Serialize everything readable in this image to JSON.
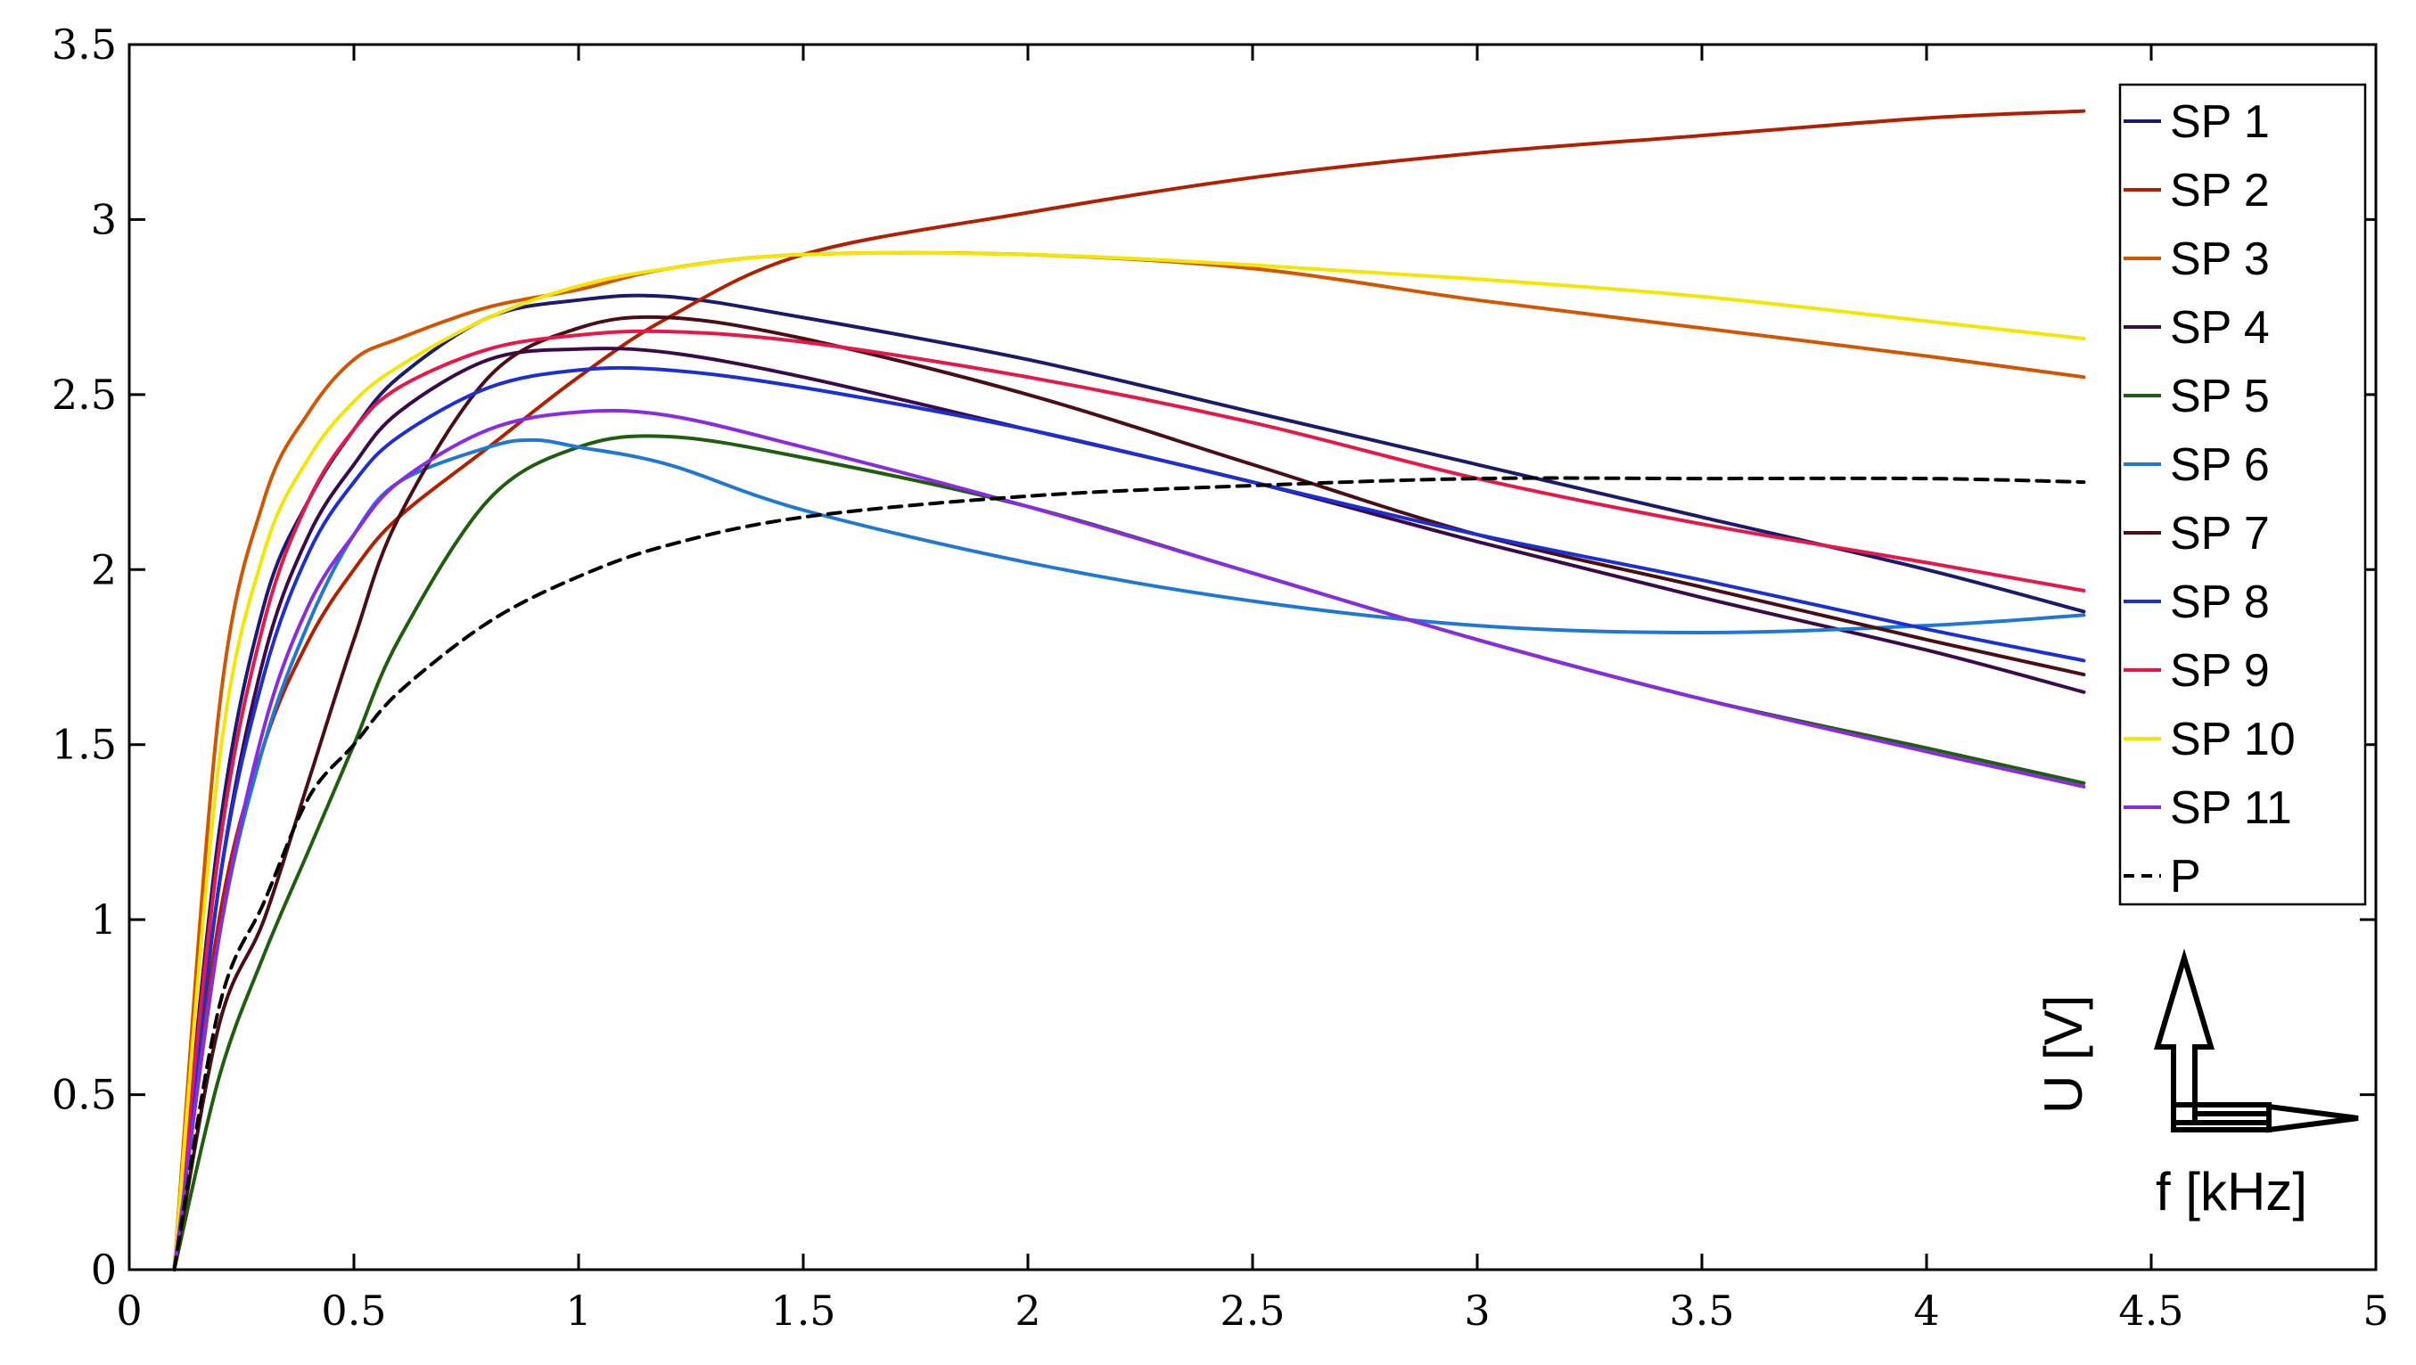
{
  "chart_data": {
    "type": "line",
    "xlim": [
      0,
      5
    ],
    "ylim": [
      0,
      3.5
    ],
    "xticks": [
      "0",
      "0.5",
      "1",
      "1.5",
      "2",
      "2.5",
      "3",
      "3.5",
      "4",
      "4.5",
      "5"
    ],
    "yticks": [
      "0",
      "0.5",
      "1",
      "1.5",
      "2",
      "2.5",
      "3",
      "3.5"
    ],
    "grid": false,
    "legend_position": "top-right",
    "axis_key": {
      "y_label": "U [V]",
      "x_label": "f [kHz]"
    },
    "series": [
      {
        "name": "SP 1",
        "color": "#1a1a6e",
        "dash": false,
        "points": [
          [
            0.1,
            0
          ],
          [
            0.2,
            1.25
          ],
          [
            0.3,
            1.9
          ],
          [
            0.4,
            2.2
          ],
          [
            0.5,
            2.4
          ],
          [
            0.6,
            2.55
          ],
          [
            0.8,
            2.72
          ],
          [
            1.0,
            2.77
          ],
          [
            1.2,
            2.78
          ],
          [
            1.5,
            2.72
          ],
          [
            2.0,
            2.6
          ],
          [
            2.5,
            2.45
          ],
          [
            3.0,
            2.3
          ],
          [
            3.5,
            2.15
          ],
          [
            4.0,
            2.0
          ],
          [
            4.35,
            1.88
          ]
        ]
      },
      {
        "name": "SP 2",
        "color": "#b22000",
        "dash": false,
        "points": [
          [
            0.1,
            0
          ],
          [
            0.2,
            1.0
          ],
          [
            0.3,
            1.5
          ],
          [
            0.4,
            1.8
          ],
          [
            0.5,
            2.0
          ],
          [
            0.6,
            2.15
          ],
          [
            0.8,
            2.35
          ],
          [
            1.0,
            2.55
          ],
          [
            1.2,
            2.72
          ],
          [
            1.5,
            2.9
          ],
          [
            2.0,
            3.02
          ],
          [
            2.5,
            3.12
          ],
          [
            3.0,
            3.19
          ],
          [
            3.5,
            3.24
          ],
          [
            4.0,
            3.29
          ],
          [
            4.35,
            3.31
          ]
        ]
      },
      {
        "name": "SP 3",
        "color": "#d45500",
        "dash": false,
        "points": [
          [
            0.1,
            0
          ],
          [
            0.2,
            1.6
          ],
          [
            0.3,
            2.2
          ],
          [
            0.4,
            2.45
          ],
          [
            0.5,
            2.6
          ],
          [
            0.6,
            2.66
          ],
          [
            0.8,
            2.75
          ],
          [
            1.0,
            2.8
          ],
          [
            1.2,
            2.86
          ],
          [
            1.5,
            2.9
          ],
          [
            2.0,
            2.9
          ],
          [
            2.5,
            2.86
          ],
          [
            3.0,
            2.77
          ],
          [
            3.5,
            2.69
          ],
          [
            4.0,
            2.61
          ],
          [
            4.35,
            2.55
          ]
        ]
      },
      {
        "name": "SP 4",
        "color": "#3b0a4a",
        "dash": false,
        "points": [
          [
            0.1,
            0
          ],
          [
            0.2,
            1.1
          ],
          [
            0.3,
            1.75
          ],
          [
            0.4,
            2.1
          ],
          [
            0.5,
            2.3
          ],
          [
            0.6,
            2.45
          ],
          [
            0.8,
            2.6
          ],
          [
            1.0,
            2.63
          ],
          [
            1.2,
            2.62
          ],
          [
            1.5,
            2.55
          ],
          [
            2.0,
            2.4
          ],
          [
            2.5,
            2.25
          ],
          [
            3.0,
            2.08
          ],
          [
            3.5,
            1.92
          ],
          [
            4.0,
            1.77
          ],
          [
            4.35,
            1.65
          ]
        ]
      },
      {
        "name": "SP 5",
        "color": "#1e5e0e",
        "dash": false,
        "points": [
          [
            0.1,
            0
          ],
          [
            0.2,
            0.55
          ],
          [
            0.3,
            0.9
          ],
          [
            0.4,
            1.2
          ],
          [
            0.5,
            1.5
          ],
          [
            0.6,
            1.8
          ],
          [
            0.8,
            2.2
          ],
          [
            1.0,
            2.35
          ],
          [
            1.2,
            2.38
          ],
          [
            1.5,
            2.32
          ],
          [
            2.0,
            2.18
          ],
          [
            2.5,
            1.99
          ],
          [
            3.0,
            1.8
          ],
          [
            3.5,
            1.63
          ],
          [
            4.0,
            1.49
          ],
          [
            4.35,
            1.39
          ]
        ]
      },
      {
        "name": "SP 6",
        "color": "#1f78d4",
        "dash": false,
        "points": [
          [
            0.1,
            0
          ],
          [
            0.2,
            0.95
          ],
          [
            0.3,
            1.5
          ],
          [
            0.4,
            1.85
          ],
          [
            0.5,
            2.1
          ],
          [
            0.6,
            2.25
          ],
          [
            0.8,
            2.35
          ],
          [
            0.9,
            2.37
          ],
          [
            1.0,
            2.35
          ],
          [
            1.2,
            2.3
          ],
          [
            1.5,
            2.17
          ],
          [
            2.0,
            2.02
          ],
          [
            2.5,
            1.91
          ],
          [
            3.0,
            1.84
          ],
          [
            3.5,
            1.82
          ],
          [
            4.0,
            1.84
          ],
          [
            4.35,
            1.87
          ]
        ]
      },
      {
        "name": "SP 7",
        "color": "#4a0e14",
        "dash": false,
        "points": [
          [
            0.1,
            0
          ],
          [
            0.2,
            0.7
          ],
          [
            0.3,
            1.0
          ],
          [
            0.4,
            1.4
          ],
          [
            0.5,
            1.8
          ],
          [
            0.6,
            2.15
          ],
          [
            0.8,
            2.55
          ],
          [
            1.0,
            2.69
          ],
          [
            1.2,
            2.72
          ],
          [
            1.5,
            2.66
          ],
          [
            2.0,
            2.5
          ],
          [
            2.5,
            2.3
          ],
          [
            3.0,
            2.1
          ],
          [
            3.5,
            1.95
          ],
          [
            4.0,
            1.8
          ],
          [
            4.35,
            1.7
          ]
        ]
      },
      {
        "name": "SP 8",
        "color": "#1c2fd6",
        "dash": false,
        "points": [
          [
            0.1,
            0
          ],
          [
            0.2,
            1.1
          ],
          [
            0.3,
            1.7
          ],
          [
            0.4,
            2.05
          ],
          [
            0.5,
            2.25
          ],
          [
            0.6,
            2.38
          ],
          [
            0.8,
            2.52
          ],
          [
            1.0,
            2.57
          ],
          [
            1.2,
            2.57
          ],
          [
            1.5,
            2.52
          ],
          [
            2.0,
            2.4
          ],
          [
            2.5,
            2.25
          ],
          [
            3.0,
            2.1
          ],
          [
            3.5,
            1.97
          ],
          [
            4.0,
            1.83
          ],
          [
            4.35,
            1.74
          ]
        ]
      },
      {
        "name": "SP 9",
        "color": "#e8174a",
        "dash": false,
        "points": [
          [
            0.1,
            0
          ],
          [
            0.2,
            1.2
          ],
          [
            0.3,
            1.85
          ],
          [
            0.4,
            2.2
          ],
          [
            0.5,
            2.4
          ],
          [
            0.6,
            2.52
          ],
          [
            0.8,
            2.63
          ],
          [
            1.0,
            2.67
          ],
          [
            1.2,
            2.68
          ],
          [
            1.5,
            2.65
          ],
          [
            2.0,
            2.55
          ],
          [
            2.5,
            2.42
          ],
          [
            3.0,
            2.26
          ],
          [
            3.5,
            2.13
          ],
          [
            4.0,
            2.02
          ],
          [
            4.35,
            1.94
          ]
        ]
      },
      {
        "name": "SP 10",
        "color": "#f5e600",
        "dash": false,
        "points": [
          [
            0.1,
            0
          ],
          [
            0.2,
            1.45
          ],
          [
            0.3,
            2.05
          ],
          [
            0.4,
            2.32
          ],
          [
            0.5,
            2.48
          ],
          [
            0.6,
            2.58
          ],
          [
            0.8,
            2.72
          ],
          [
            1.0,
            2.81
          ],
          [
            1.2,
            2.86
          ],
          [
            1.5,
            2.9
          ],
          [
            2.0,
            2.9
          ],
          [
            2.5,
            2.87
          ],
          [
            3.0,
            2.83
          ],
          [
            3.5,
            2.78
          ],
          [
            4.0,
            2.71
          ],
          [
            4.35,
            2.66
          ]
        ]
      },
      {
        "name": "SP 11",
        "color": "#8a2be2",
        "dash": false,
        "points": [
          [
            0.1,
            0
          ],
          [
            0.2,
            0.95
          ],
          [
            0.3,
            1.55
          ],
          [
            0.4,
            1.9
          ],
          [
            0.5,
            2.1
          ],
          [
            0.6,
            2.25
          ],
          [
            0.8,
            2.4
          ],
          [
            1.0,
            2.45
          ],
          [
            1.2,
            2.44
          ],
          [
            1.5,
            2.35
          ],
          [
            2.0,
            2.18
          ],
          [
            2.5,
            1.99
          ],
          [
            3.0,
            1.8
          ],
          [
            3.5,
            1.63
          ],
          [
            4.0,
            1.48
          ],
          [
            4.35,
            1.38
          ]
        ]
      },
      {
        "name": "P",
        "color": "#000000",
        "dash": true,
        "points": [
          [
            0.1,
            0
          ],
          [
            0.2,
            0.75
          ],
          [
            0.3,
            1.05
          ],
          [
            0.4,
            1.35
          ],
          [
            0.5,
            1.5
          ],
          [
            0.6,
            1.65
          ],
          [
            0.8,
            1.85
          ],
          [
            1.0,
            1.98
          ],
          [
            1.2,
            2.07
          ],
          [
            1.5,
            2.15
          ],
          [
            2.0,
            2.21
          ],
          [
            2.5,
            2.24
          ],
          [
            3.0,
            2.26
          ],
          [
            3.5,
            2.26
          ],
          [
            4.0,
            2.26
          ],
          [
            4.35,
            2.25
          ]
        ]
      }
    ]
  }
}
